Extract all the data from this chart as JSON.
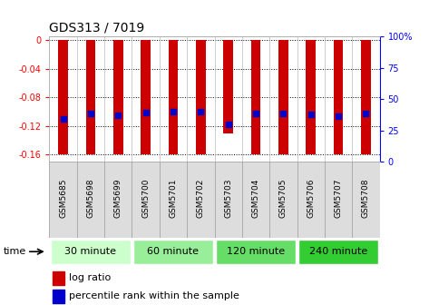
{
  "title": "GDS313 / 7019",
  "samples": [
    "GSM5685",
    "GSM5698",
    "GSM5699",
    "GSM5700",
    "GSM5701",
    "GSM5702",
    "GSM5703",
    "GSM5704",
    "GSM5705",
    "GSM5706",
    "GSM5707",
    "GSM5708"
  ],
  "log_ratio": [
    -0.16,
    -0.16,
    -0.16,
    -0.16,
    -0.16,
    -0.16,
    -0.13,
    -0.16,
    -0.16,
    -0.16,
    -0.16,
    -0.16
  ],
  "log_ratio_top": [
    0.0,
    0.0,
    0.0,
    0.0,
    0.0,
    0.0,
    0.0,
    0.0,
    0.0,
    0.0,
    0.0,
    0.0
  ],
  "percentile": [
    -0.11,
    -0.103,
    -0.105,
    -0.101,
    -0.1,
    -0.1,
    -0.118,
    -0.103,
    -0.103,
    -0.104,
    -0.107,
    -0.103
  ],
  "groups": [
    {
      "label": "30 minute",
      "start": 0,
      "end": 3,
      "color": "#ccffcc"
    },
    {
      "label": "60 minute",
      "start": 3,
      "end": 6,
      "color": "#99ee99"
    },
    {
      "label": "120 minute",
      "start": 6,
      "end": 9,
      "color": "#66dd66"
    },
    {
      "label": "240 minute",
      "start": 9,
      "end": 12,
      "color": "#33cc33"
    }
  ],
  "ylim": [
    -0.17,
    0.005
  ],
  "yticks": [
    0,
    -0.04,
    -0.08,
    -0.12,
    -0.16
  ],
  "ytick_labels": [
    "0",
    "-0.04",
    "-0.08",
    "-0.12",
    "-0.16"
  ],
  "right_yticks": [
    0,
    25,
    50,
    75,
    100
  ],
  "right_ytick_labels": [
    "0",
    "25",
    "50",
    "75",
    "100%"
  ],
  "bar_color": "#cc0000",
  "percentile_color": "#0000cc",
  "bar_width": 0.35,
  "bg_color": "#ffffff",
  "grid_color": "#000000",
  "sample_bg": "#dddddd"
}
